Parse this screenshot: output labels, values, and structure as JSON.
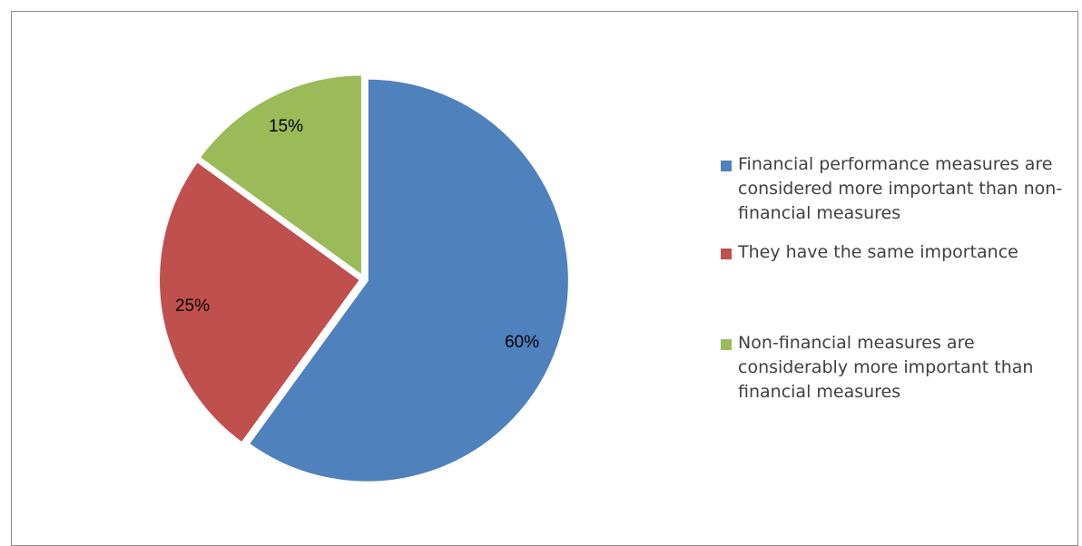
{
  "chart_data": {
    "type": "pie",
    "categories": [
      "Financial performance measures are considered more important than non-financial measures",
      "They have the same importance",
      "Non-financial measures are considerably more important than financial measures"
    ],
    "values": [
      60,
      25,
      15
    ],
    "data_labels": [
      "60%",
      "25%",
      "15%"
    ],
    "colors": [
      "#4f81bd",
      "#c0504d",
      "#9bbb59"
    ],
    "legend_position": "right"
  },
  "legend": {
    "items": [
      {
        "label": "Financial performance measures are considered more important than non-financial measures"
      },
      {
        "label": "They have the same importance"
      },
      {
        "label": "Non-financial measures are considerably more important than financial measures"
      }
    ]
  }
}
